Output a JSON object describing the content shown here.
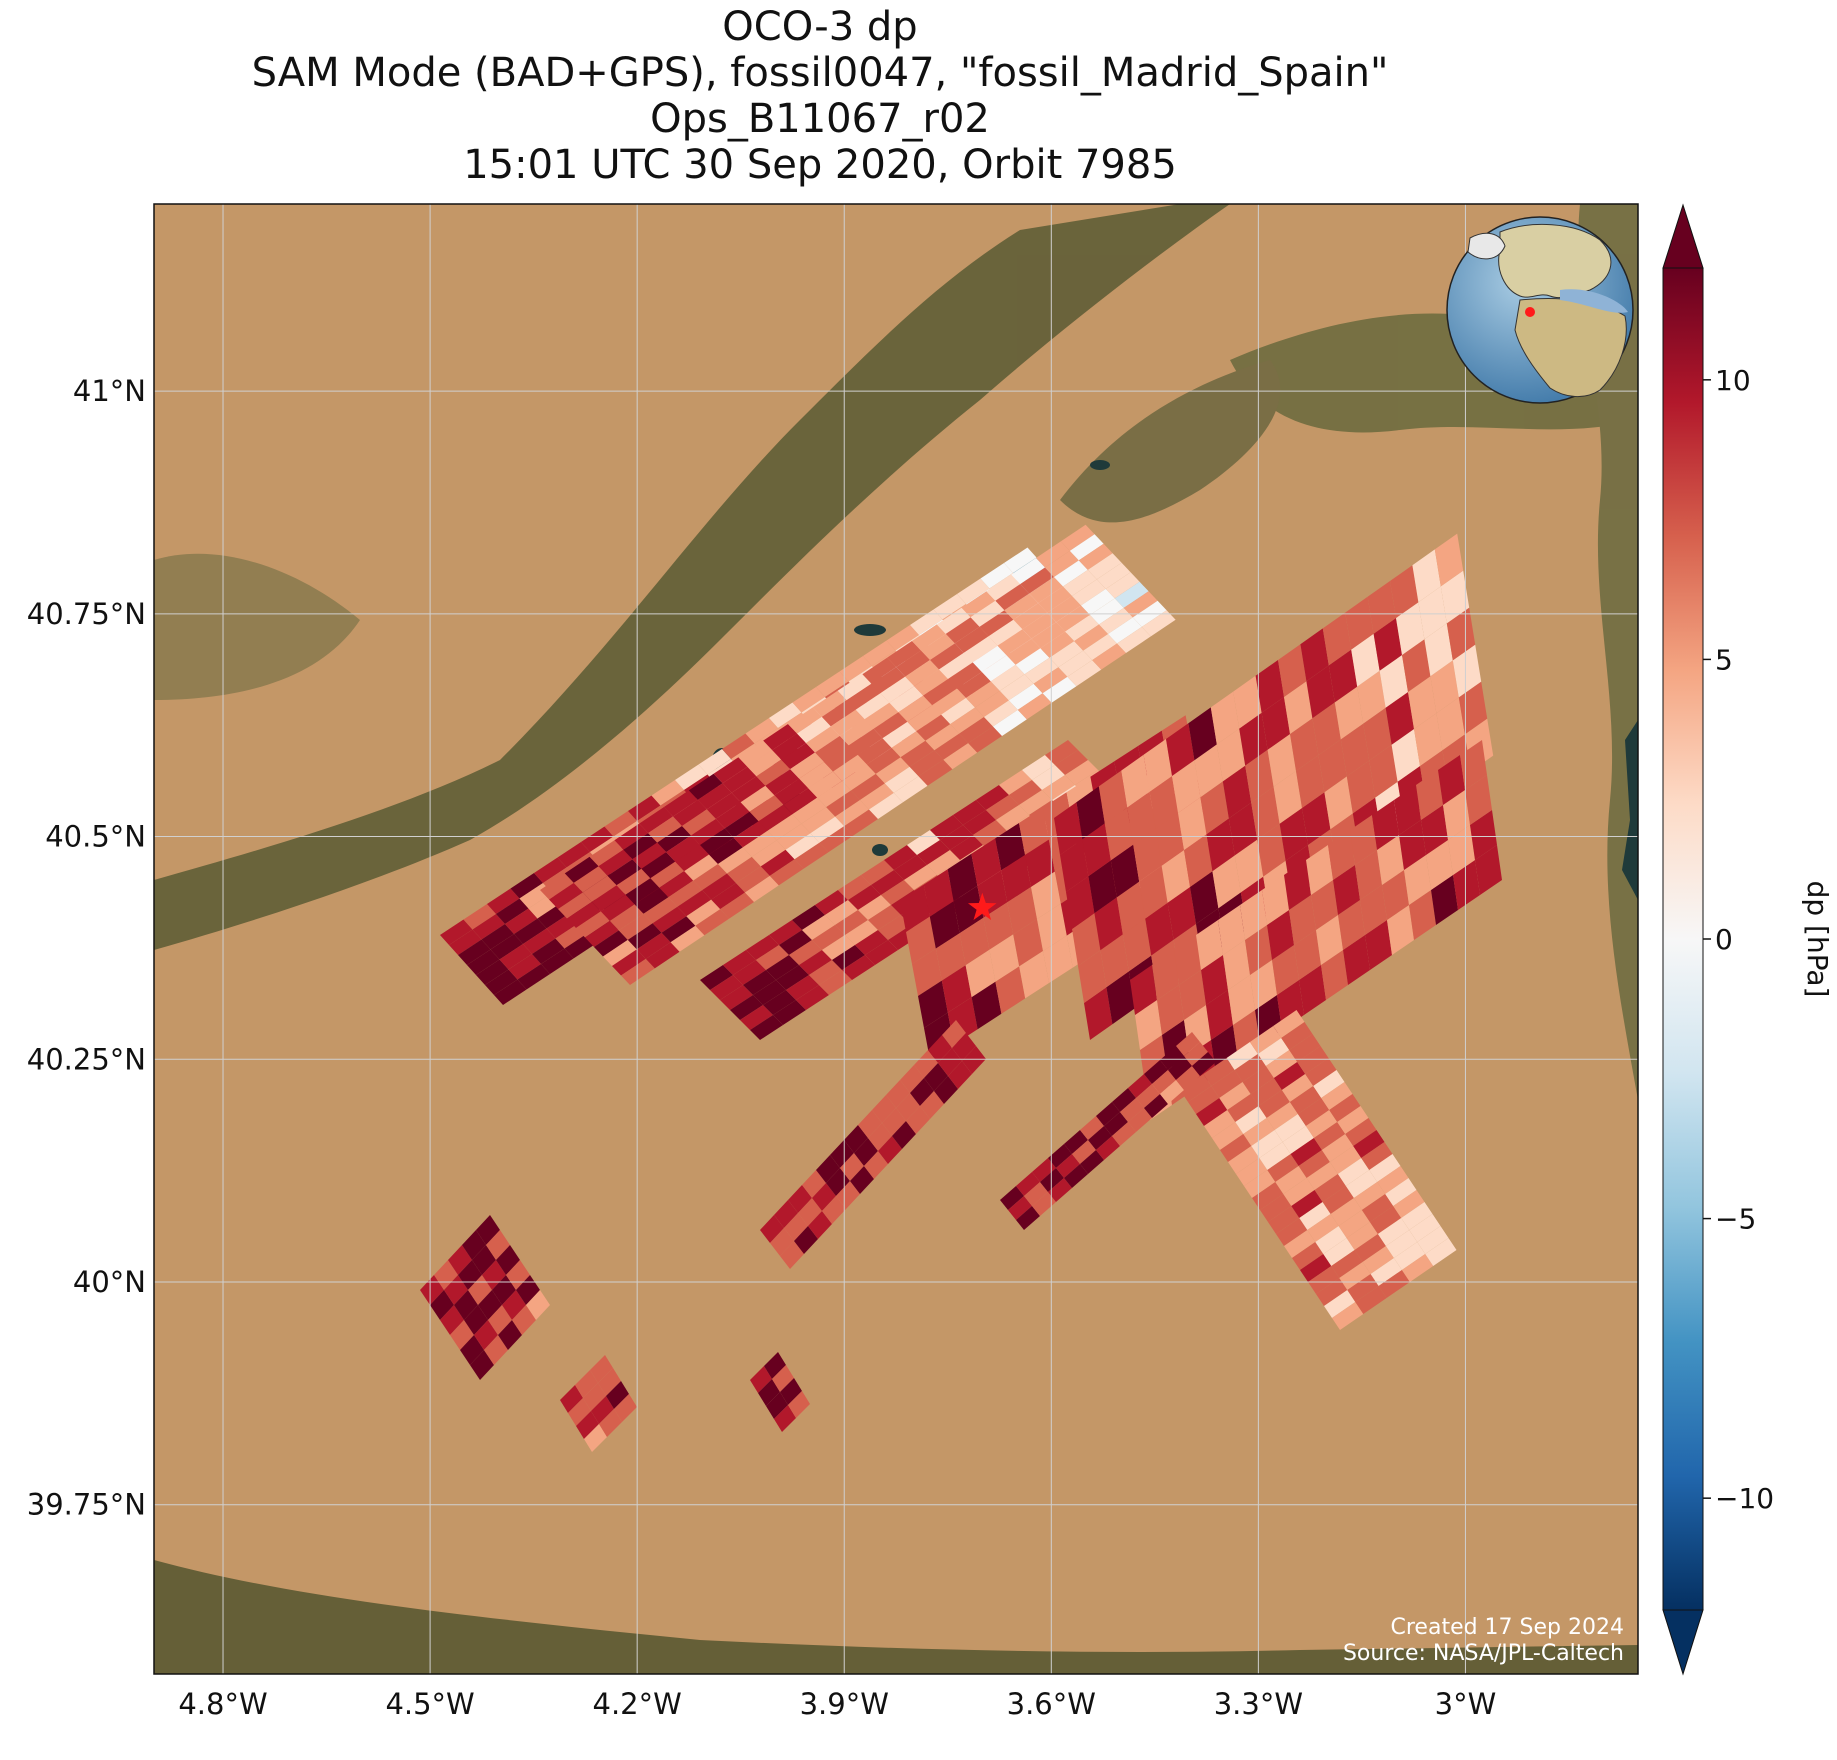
{
  "title": {
    "line1": "OCO-3 dp",
    "line2": "SAM Mode (BAD+GPS), fossil0047, \"fossil_Madrid_Spain\"",
    "line3": "Ops_B11067_r02",
    "line4": "15:01 UTC 30 Sep 2020, Orbit 7985"
  },
  "map": {
    "lon_range": [
      -4.9,
      -2.75
    ],
    "lat_range": [
      39.56,
      41.21
    ],
    "lon_ticks": [
      {
        "value": -4.8,
        "label": "4.8°W"
      },
      {
        "value": -4.5,
        "label": "4.5°W"
      },
      {
        "value": -4.2,
        "label": "4.2°W"
      },
      {
        "value": -3.9,
        "label": "3.9°W"
      },
      {
        "value": -3.6,
        "label": "3.6°W"
      },
      {
        "value": -3.3,
        "label": "3.3°W"
      },
      {
        "value": -3.0,
        "label": "3°W"
      }
    ],
    "lat_ticks": [
      {
        "value": 41.0,
        "label": "41°N"
      },
      {
        "value": 40.75,
        "label": "40.75°N"
      },
      {
        "value": 40.5,
        "label": "40.5°N"
      },
      {
        "value": 40.25,
        "label": "40.25°N"
      },
      {
        "value": 40.0,
        "label": "40°N"
      },
      {
        "value": 39.75,
        "label": "39.75°N"
      }
    ],
    "target_marker": {
      "lon": -3.7,
      "lat": 40.42,
      "color": "#ff1a1a",
      "icon": "star-icon"
    },
    "basemap_colors": {
      "arid": "#c79a67",
      "vegetation": "#5c5a36",
      "water": "#1f3a3a"
    },
    "credits": {
      "created": "Created 17 Sep 2024",
      "source": "Source: NASA/JPL-Caltech"
    }
  },
  "colorbar": {
    "label": "dp [hPa]",
    "vmin": -12,
    "vmax": 12,
    "ticks": [
      {
        "value": 10,
        "label": "10"
      },
      {
        "value": 5,
        "label": "5"
      },
      {
        "value": 0,
        "label": "0"
      },
      {
        "value": -5,
        "label": "−5"
      },
      {
        "value": -10,
        "label": "−10"
      }
    ],
    "colormap": "RdBu_r",
    "extend": "both"
  },
  "globe_inset": {
    "icon": "globe-icon",
    "marker_color": "#ff1a1a"
  }
}
